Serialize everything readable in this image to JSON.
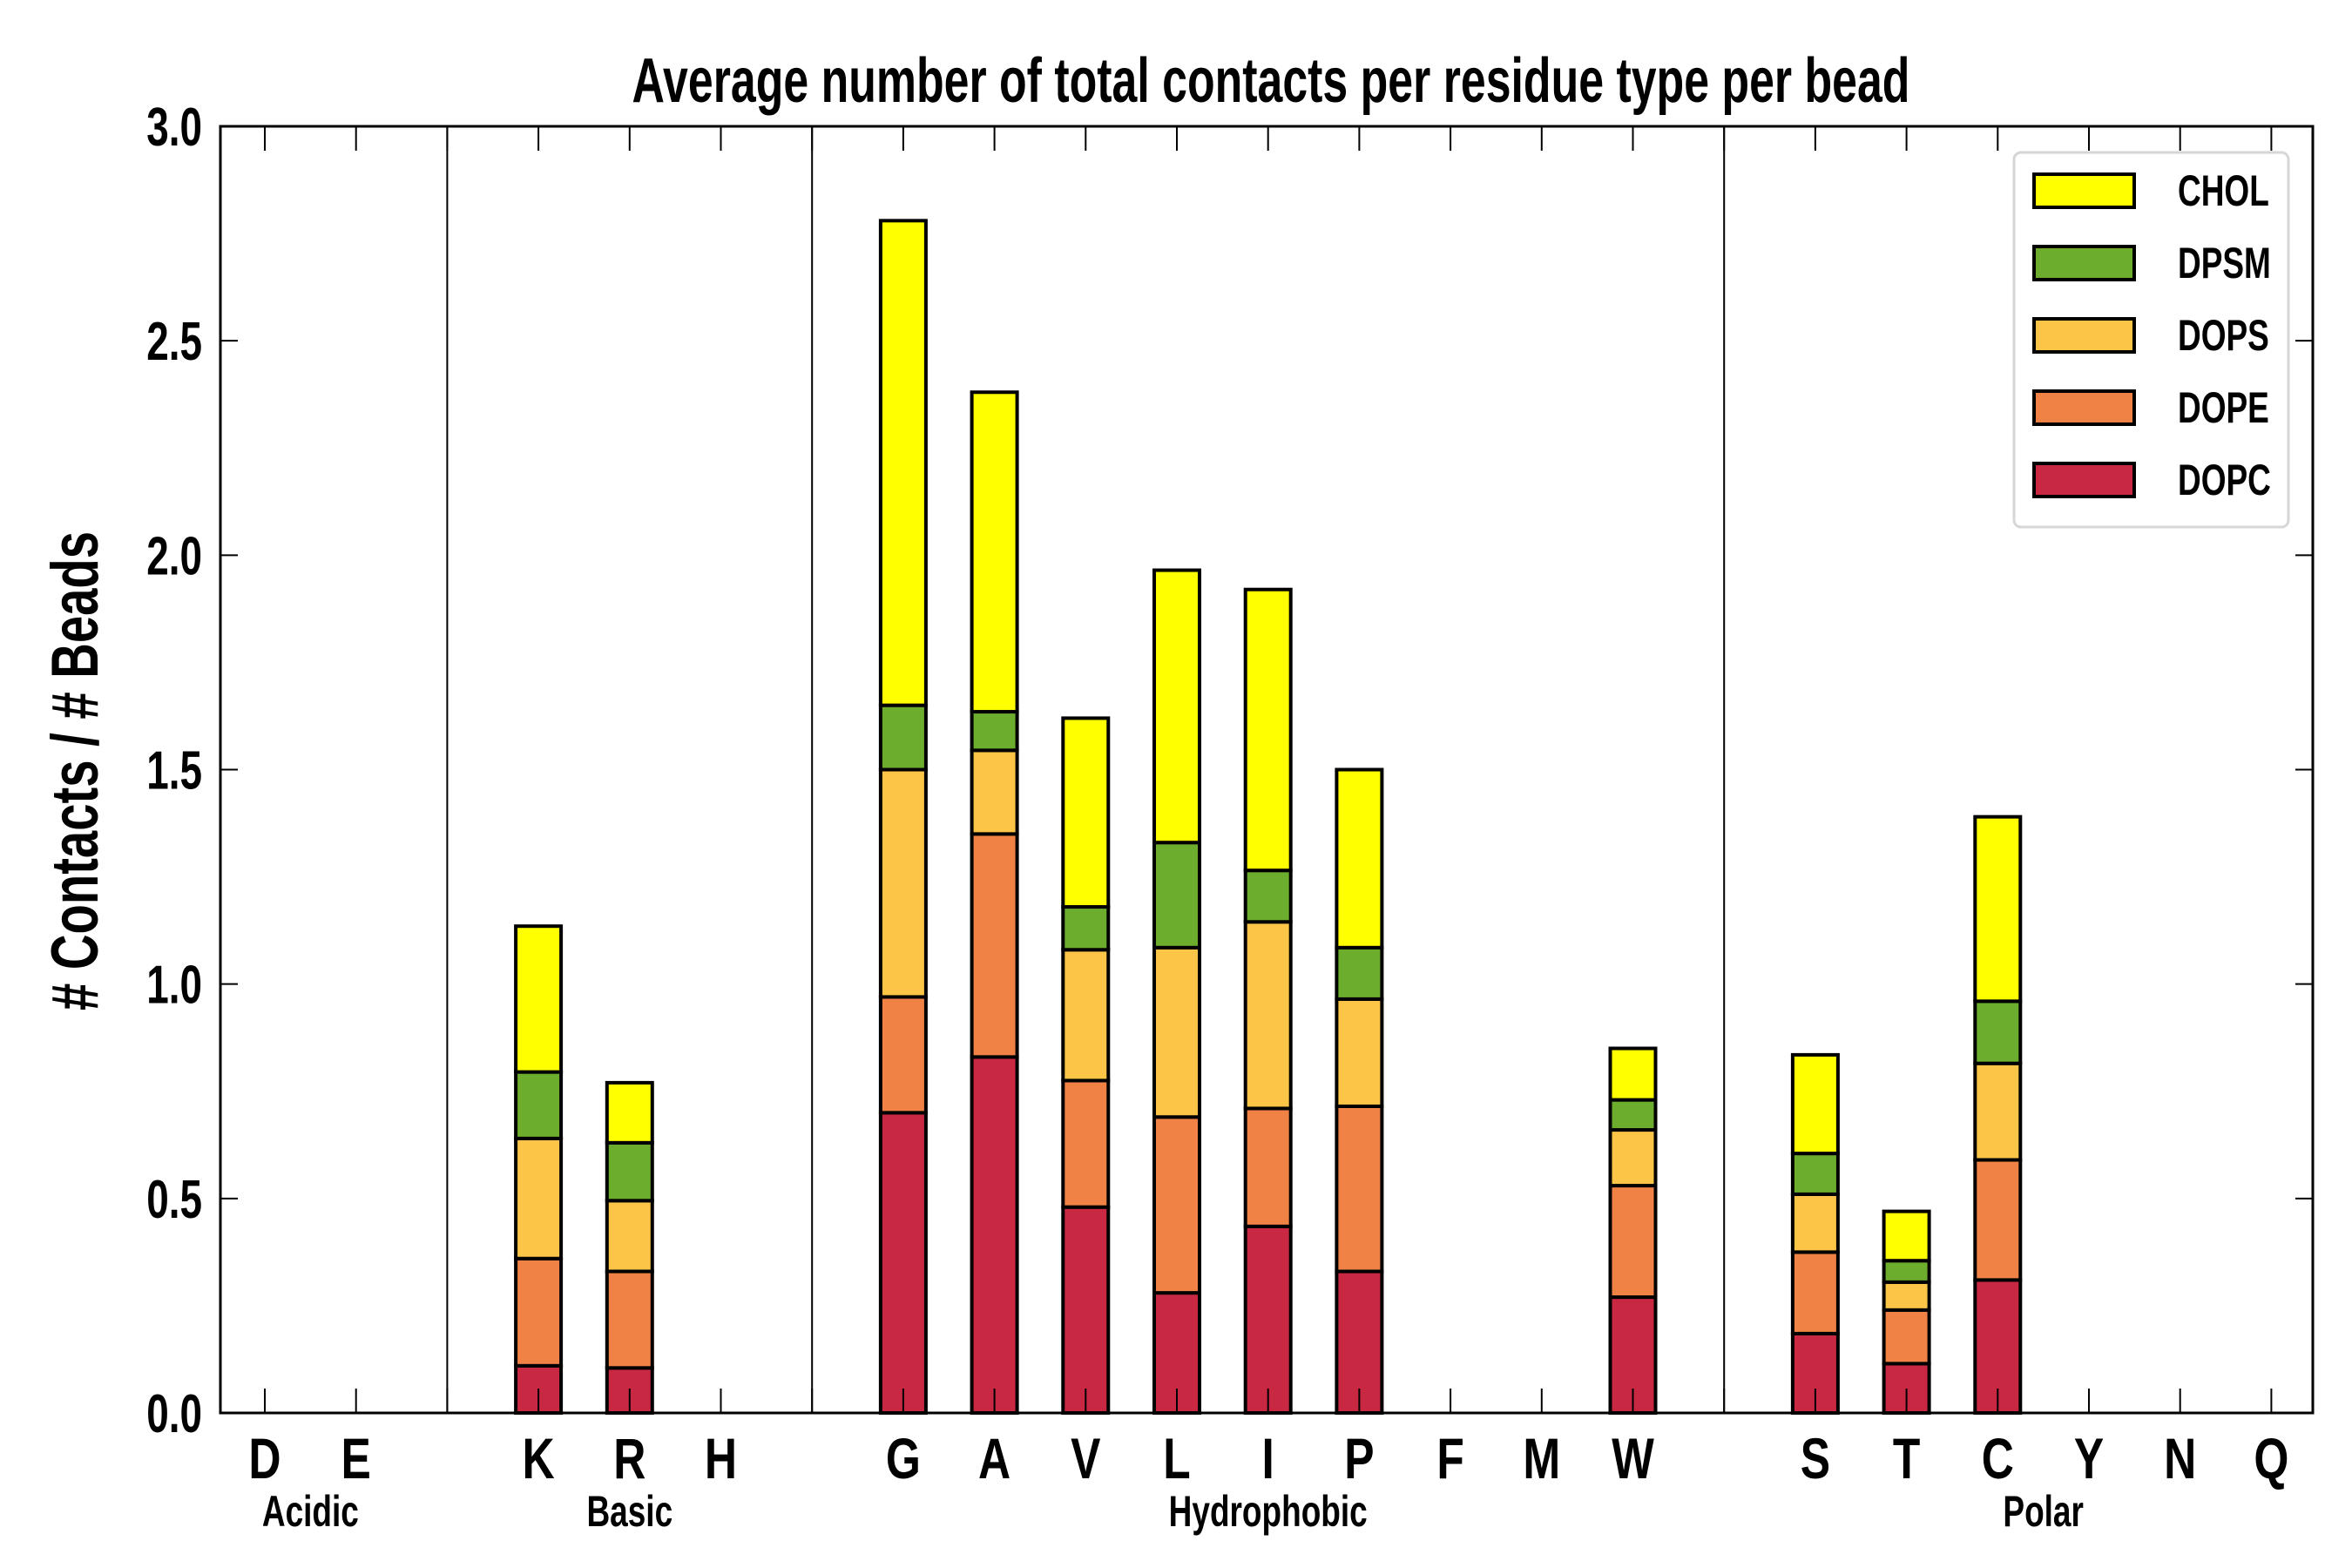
{
  "chart_data": {
    "type": "bar",
    "stacked": true,
    "title": "Average number of total contacts per residue type per bead",
    "xlabel": "",
    "ylabel": "# Contacts / # Beads",
    "ylim": [
      0,
      3.0
    ],
    "yticks": [
      "0.0",
      "0.5",
      "1.0",
      "1.5",
      "2.0",
      "2.5",
      "3.0"
    ],
    "legend_position": "top-right",
    "categories": [
      "D",
      "E",
      "",
      "K",
      "R",
      "H",
      "",
      "G",
      "A",
      "V",
      "L",
      "I",
      "P",
      "F",
      "M",
      "W",
      "",
      "S",
      "T",
      "C",
      "Y",
      "N",
      "Q"
    ],
    "groups": [
      {
        "label": "Acidic",
        "members": [
          "D",
          "E"
        ]
      },
      {
        "label": "Basic",
        "members": [
          "K",
          "R",
          "H"
        ]
      },
      {
        "label": "Hydrophobic",
        "members": [
          "G",
          "A",
          "V",
          "L",
          "I",
          "P",
          "F",
          "M",
          "W"
        ]
      },
      {
        "label": "Polar",
        "members": [
          "S",
          "T",
          "C",
          "Y",
          "N",
          "Q"
        ]
      }
    ],
    "series": [
      {
        "name": "DOPC",
        "color": "#c92843",
        "values": [
          0,
          0,
          0,
          0.11,
          0.105,
          0,
          0,
          0.7,
          0.83,
          0.48,
          0.28,
          0.435,
          0.33,
          0,
          0,
          0.27,
          0,
          0.185,
          0.115,
          0.31,
          0,
          0,
          0
        ]
      },
      {
        "name": "DOPE",
        "color": "#ef8244",
        "values": [
          0,
          0,
          0,
          0.25,
          0.225,
          0,
          0,
          0.27,
          0.52,
          0.295,
          0.41,
          0.275,
          0.385,
          0,
          0,
          0.26,
          0,
          0.19,
          0.125,
          0.28,
          0,
          0,
          0
        ]
      },
      {
        "name": "DOPS",
        "color": "#fcc547",
        "values": [
          0,
          0,
          0,
          0.28,
          0.165,
          0,
          0,
          0.53,
          0.195,
          0.305,
          0.395,
          0.435,
          0.25,
          0,
          0,
          0.13,
          0,
          0.135,
          0.065,
          0.225,
          0,
          0,
          0
        ]
      },
      {
        "name": "DPSM",
        "color": "#6dad2e",
        "values": [
          0,
          0,
          0,
          0.155,
          0.135,
          0,
          0,
          0.15,
          0.09,
          0.1,
          0.245,
          0.12,
          0.12,
          0,
          0,
          0.07,
          0,
          0.095,
          0.05,
          0.145,
          0,
          0,
          0
        ]
      },
      {
        "name": "CHOL",
        "color": "#ffff00",
        "values": [
          0,
          0,
          0,
          0.34,
          0.14,
          0,
          0,
          1.13,
          0.745,
          0.44,
          0.635,
          0.655,
          0.415,
          0,
          0,
          0.12,
          0,
          0.23,
          0.115,
          0.43,
          0,
          0,
          0
        ]
      }
    ],
    "legend_order": [
      "CHOL",
      "DPSM",
      "DOPS",
      "DOPE",
      "DOPC"
    ]
  }
}
